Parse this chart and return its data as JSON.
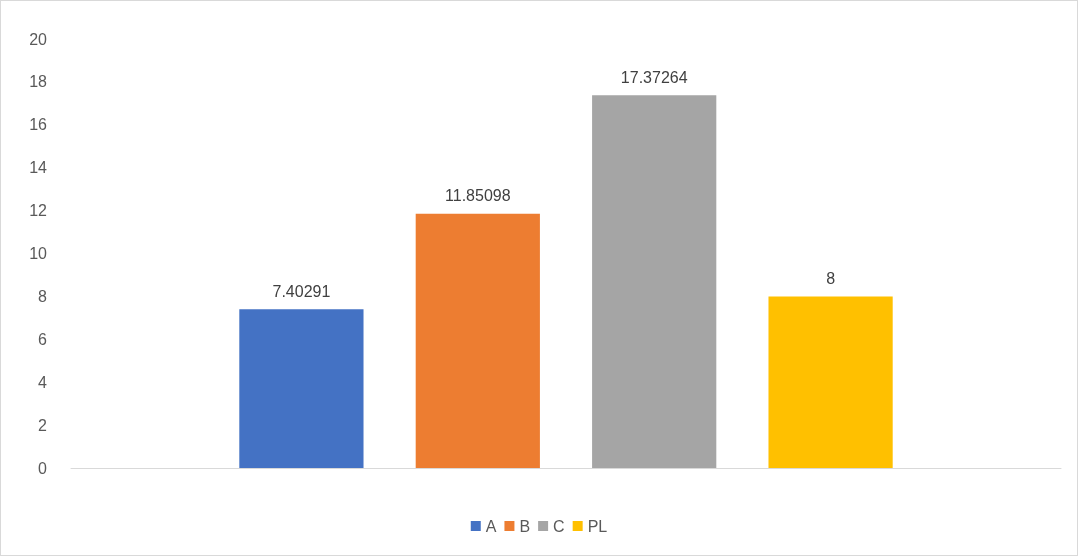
{
  "chart_data": {
    "type": "bar",
    "categories": [
      null
    ],
    "series": [
      {
        "name": "A",
        "color": "#4472c4",
        "values": [
          7.40291
        ]
      },
      {
        "name": "B",
        "color": "#ed7d31",
        "values": [
          11.85098
        ]
      },
      {
        "name": "C",
        "color": "#a5a5a5",
        "values": [
          17.37264
        ]
      },
      {
        "name": "PL",
        "color": "#ffc000",
        "values": [
          8
        ]
      }
    ],
    "ylim": [
      0,
      20
    ],
    "yticks": [
      0,
      2,
      4,
      6,
      8,
      10,
      12,
      14,
      16,
      18,
      20
    ],
    "grid": false,
    "legend": "bottom",
    "data_labels": true
  }
}
